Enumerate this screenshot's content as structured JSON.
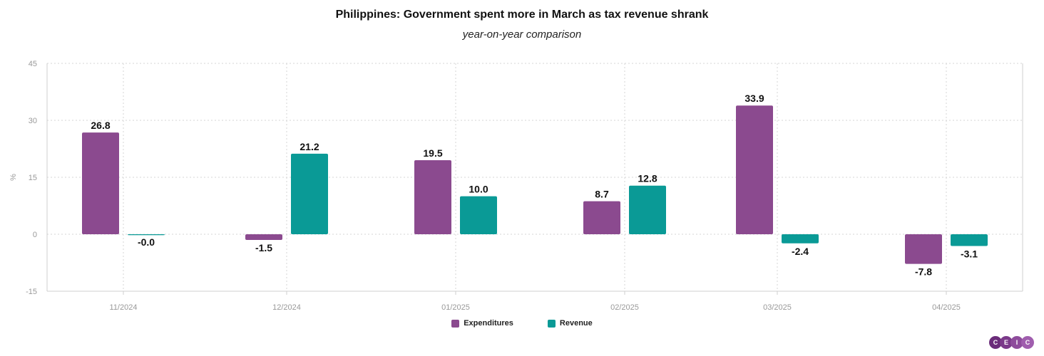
{
  "chart_data": {
    "type": "bar",
    "title": "Philippines: Government spent more in March as tax revenue shrank",
    "subtitle": "year-on-year comparison",
    "ylabel": "%",
    "xlabel": "",
    "ylim": [
      -15,
      45
    ],
    "yticks": [
      45,
      30,
      15,
      0,
      -15
    ],
    "categories": [
      "11/2024",
      "12/2024",
      "01/2025",
      "02/2025",
      "03/2025",
      "04/2025"
    ],
    "series": [
      {
        "name": "Expenditures",
        "color": "#8B4A8F",
        "values": [
          26.8,
          -1.5,
          19.5,
          8.7,
          33.9,
          -7.8
        ],
        "labels": [
          "26.8",
          "-1.5",
          "19.5",
          "8.7",
          "33.9",
          "-7.8"
        ]
      },
      {
        "name": "Revenue",
        "color": "#0A9A96",
        "values": [
          -0.0,
          21.2,
          10.0,
          12.8,
          -2.4,
          -3.1
        ],
        "labels": [
          "-0.0",
          "21.2",
          "10.0",
          "12.8",
          "-2.4",
          "-3.1"
        ]
      }
    ],
    "grid": true,
    "legend_position": "bottom-center"
  },
  "logo": {
    "letters": [
      "C",
      "E",
      "I",
      "C"
    ],
    "colors": [
      "#6B2C7A",
      "#7B3A8A",
      "#8E4C9C",
      "#A05EAE"
    ]
  }
}
